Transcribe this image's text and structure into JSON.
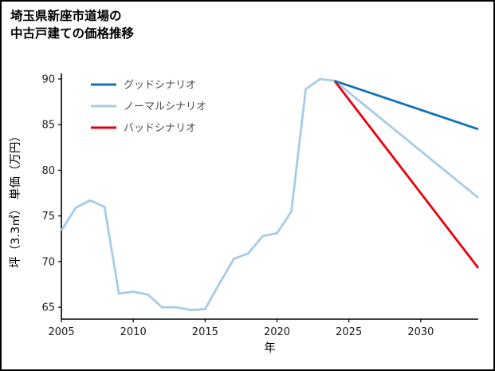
{
  "chart_data": {
    "type": "line",
    "title": "埼玉県新座市道場の中古戸建ての価格推移",
    "title_lines": [
      "埼玉県新座市道場の",
      "中古戸建ての価格推移"
    ],
    "xlabel": "年",
    "ylabel": "坪（3.3㎡） 単価（万円）",
    "xlim": [
      2005,
      2034
    ],
    "ylim": [
      63.7,
      90
    ],
    "xticks": [
      "2005",
      "2010",
      "2015",
      "2020",
      "2025",
      "2030"
    ],
    "yticks": [
      "65",
      "70",
      "75",
      "80",
      "85",
      "90"
    ],
    "grid": false,
    "legend_position": "top-left",
    "axis_color": "#000000",
    "tick_label_color": "#1a1a1a",
    "legend_text_color": "#4d4d4d",
    "series": [
      {
        "name": "グッドシナリオ",
        "color": "#1273b5",
        "points": [
          [
            2024,
            89.8
          ],
          [
            2034,
            84.5
          ]
        ]
      },
      {
        "name": "ノーマルシナリオ",
        "color": "#a6cbe9",
        "points": [
          [
            2005,
            73.4
          ],
          [
            2006,
            75.9
          ],
          [
            2007,
            76.7
          ],
          [
            2008,
            76.0
          ],
          [
            2009,
            66.5
          ],
          [
            2010,
            66.7
          ],
          [
            2011,
            66.4
          ],
          [
            2012,
            65.0
          ],
          [
            2013,
            65.0
          ],
          [
            2014,
            64.7
          ],
          [
            2015,
            64.8
          ],
          [
            2016,
            67.6
          ],
          [
            2017,
            70.3
          ],
          [
            2018,
            70.9
          ],
          [
            2019,
            72.8
          ],
          [
            2020,
            73.1
          ],
          [
            2021,
            75.5
          ],
          [
            2022,
            88.9
          ],
          [
            2023,
            90.0
          ],
          [
            2024,
            89.8
          ],
          [
            2034,
            77.0
          ]
        ]
      },
      {
        "name": "バッドシナリオ",
        "color": "#e8000d",
        "points": [
          [
            2024,
            89.8
          ],
          [
            2034,
            69.3
          ]
        ]
      }
    ]
  }
}
